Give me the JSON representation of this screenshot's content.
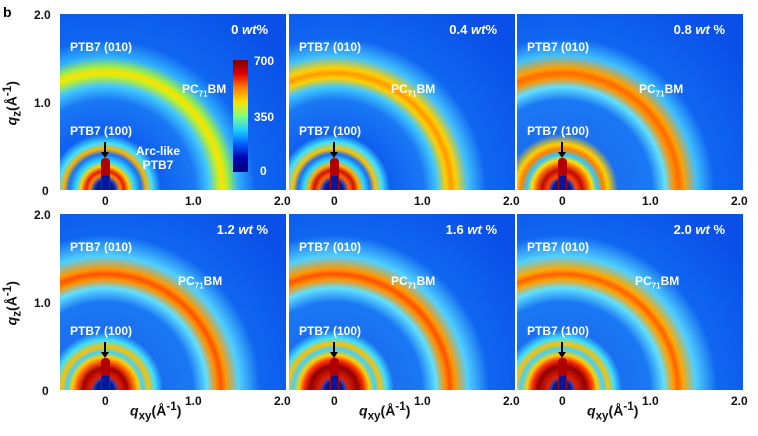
{
  "panel_letter": "b",
  "panels": [
    {
      "wt": "0",
      "unit": "wt",
      "pct": "%"
    },
    {
      "wt": "0.4",
      "unit": "wt",
      "pct": "%"
    },
    {
      "wt": "0.8",
      "unit": "wt",
      "pct": " %"
    },
    {
      "wt": "1.2",
      "unit": "wt",
      "pct": " %"
    },
    {
      "wt": "1.6",
      "unit": "wt",
      "pct": " %"
    },
    {
      "wt": "2.0",
      "unit": "wt",
      "pct": " %"
    }
  ],
  "labels": {
    "ptb7_010": "PTB7 (010)",
    "ptb7_100": "PTB7 (100)",
    "pcbm_pre": "PC",
    "pcbm_sub": "71",
    "pcbm_post": "BM",
    "arc1": "Arc-like",
    "arc2": "PTB7"
  },
  "colorbar": {
    "max": "700",
    "mid": "350",
    "min": "0"
  },
  "x_ticks": [
    "0",
    "1.0",
    "2.0"
  ],
  "y_ticks": [
    "2.0",
    "1.0",
    "0"
  ],
  "x_axis": {
    "q": "q",
    "sub": "xy",
    "unit": "(Å",
    "exp": "-1",
    "close": ")"
  },
  "y_axis": {
    "q": "q",
    "sub": "z",
    "unit": "(Å",
    "exp": "-1",
    "close": ")"
  }
}
